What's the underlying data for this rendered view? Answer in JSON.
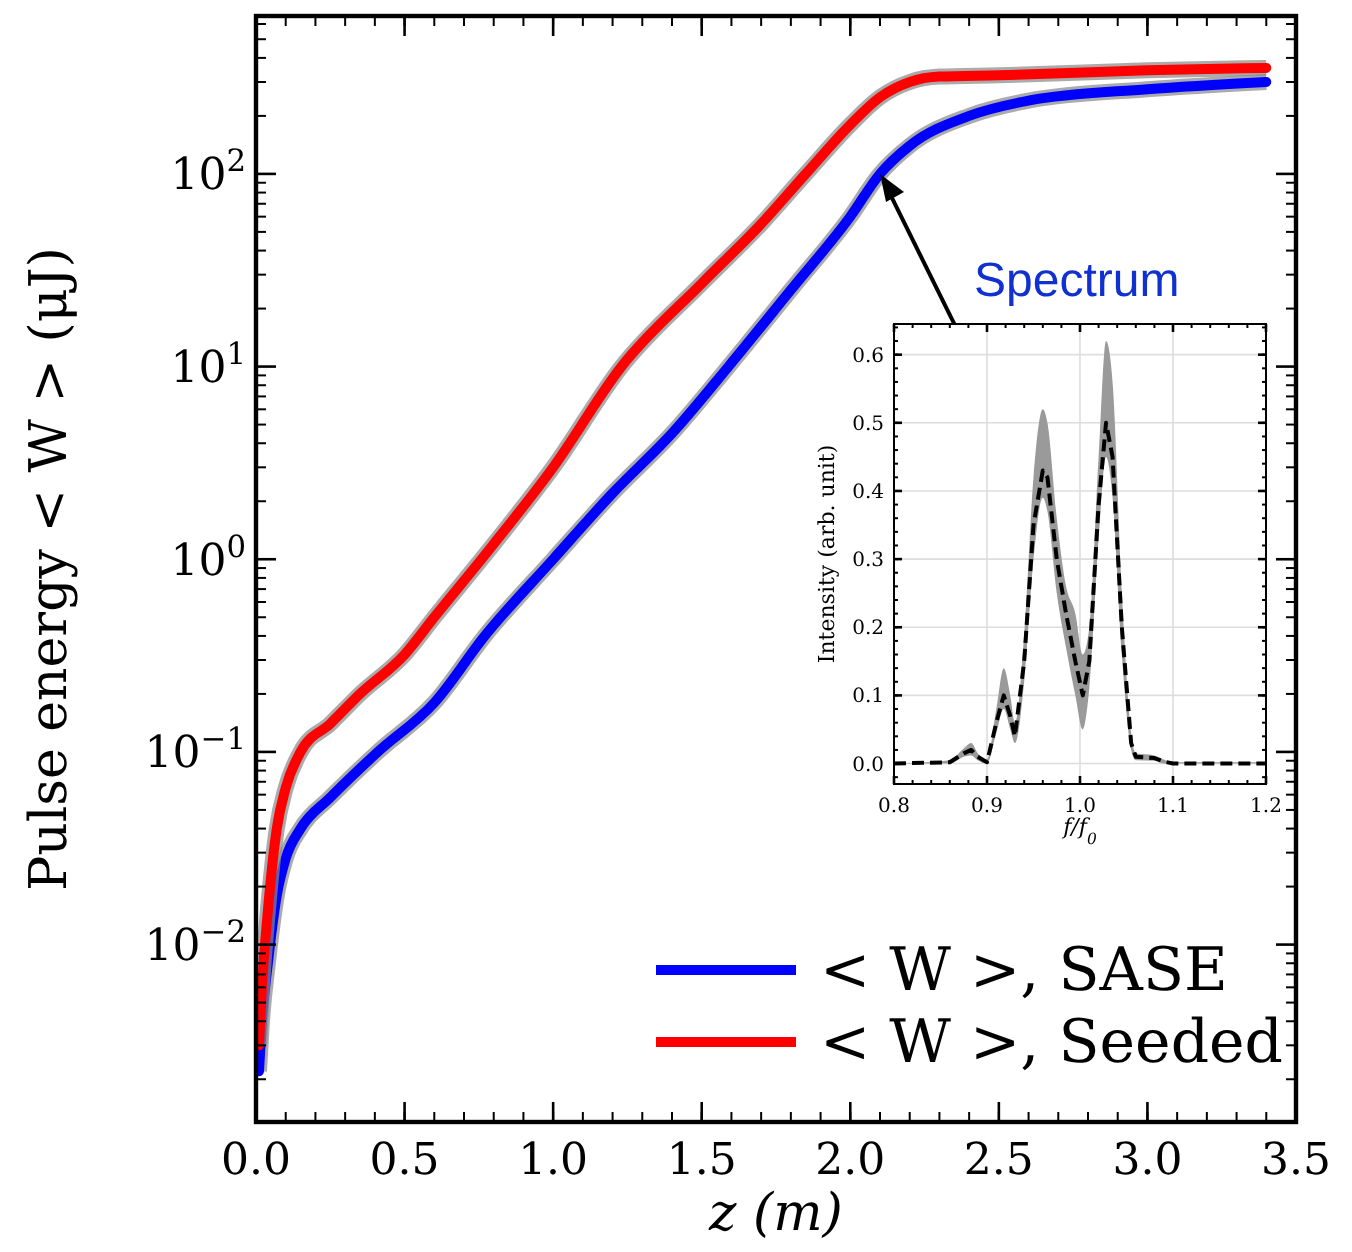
{
  "chart_data": [
    {
      "type": "line",
      "xlabel": "z (m)",
      "ylabel": "Pulse energy  < W >  (μJ)",
      "log": "y",
      "xlim": [
        0,
        3.5
      ],
      "ylim": [
        0.0012,
        660
      ],
      "xticks": [
        {
          "value": 0,
          "label": "0.0"
        },
        {
          "value": 0.5,
          "label": "0.5"
        },
        {
          "value": 1,
          "label": "1.0"
        },
        {
          "value": 1.5,
          "label": "1.5"
        },
        {
          "value": 2,
          "label": "2.0"
        },
        {
          "value": 2.5,
          "label": "2.5"
        },
        {
          "value": 3,
          "label": "3.0"
        },
        {
          "value": 3.5,
          "label": "3.5"
        }
      ],
      "yticks": [
        {
          "value": 0.01,
          "label": "10$^{−2}$"
        },
        {
          "value": 0.1,
          "label": "10$^{−1}$"
        },
        {
          "value": 1,
          "label": "10$^{0}$"
        },
        {
          "value": 10,
          "label": "10$^{1}$"
        },
        {
          "value": 100,
          "label": "10$^{2}$"
        }
      ],
      "grid": false,
      "legend": "bottom right",
      "marker": "none",
      "line_style": "solid",
      "annotations": [
        {
          "text": "Spectrum",
          "x": 2.1,
          "y": 100
        }
      ],
      "series": [
        {
          "name": "< W >, SASE",
          "color": "#0000ff",
          "x": [
            0.01,
            0.02,
            0.04,
            0.07,
            0.1,
            0.15,
            0.25,
            0.41,
            0.6,
            0.77,
            1.0,
            1.2,
            1.4,
            1.59,
            1.8,
            2.0,
            2.1,
            2.2,
            2.4,
            2.6,
            3.0,
            3.4
          ],
          "values": [
            0.0022,
            0.004,
            0.008,
            0.018,
            0.028,
            0.04,
            0.058,
            0.1,
            0.18,
            0.4,
            1.0,
            2.2,
            4.5,
            10,
            25,
            60,
            100,
            140,
            200,
            240,
            275,
            300
          ]
        },
        {
          "name": "< W >, Seeded",
          "color": "#ff0000",
          "x": [
            0.01,
            0.02,
            0.04,
            0.07,
            0.1,
            0.15,
            0.25,
            0.35,
            0.5,
            0.6,
            0.8,
            1.0,
            1.23,
            1.5,
            1.7,
            1.85,
            2.0,
            2.1,
            2.2,
            2.3,
            2.5,
            3.0,
            3.4
          ],
          "values": [
            0.003,
            0.006,
            0.015,
            0.04,
            0.065,
            0.1,
            0.14,
            0.2,
            0.32,
            0.5,
            1.2,
            3,
            10,
            27,
            55,
            100,
            180,
            250,
            300,
            320,
            325,
            345,
            355
          ]
        }
      ]
    },
    {
      "type": "line",
      "xlabel": "f/f$_{0}$",
      "ylabel": "Intensity (arb. unit)",
      "xlim": [
        0.8,
        1.2
      ],
      "ylim": [
        -0.03,
        0.645
      ],
      "xticks": [
        {
          "value": 0.8,
          "label": "0.8"
        },
        {
          "value": 0.9,
          "label": "0.9"
        },
        {
          "value": 1,
          "label": "1.0"
        },
        {
          "value": 1.1,
          "label": "1.1"
        },
        {
          "value": 1.2,
          "label": "1.2"
        }
      ],
      "yticks": [
        {
          "value": 0,
          "label": "0.0"
        },
        0.1,
        0.2,
        0.3,
        0.4,
        0.5,
        0.6
      ],
      "grid": true,
      "marker": "none",
      "line_style": "dashed",
      "series": [
        {
          "color": "#000000",
          "x": [
            0.8,
            0.86,
            0.875,
            0.883,
            0.89,
            0.9,
            0.91,
            0.918,
            0.925,
            0.93,
            0.94,
            0.95,
            0.96,
            0.965,
            0.975,
            0.985,
            0.995,
            1.003,
            1.01,
            1.02,
            1.028,
            1.035,
            1.045,
            1.055,
            1.06,
            1.08,
            1.09,
            1.1,
            1.2
          ],
          "values": [
            0,
            0.002,
            0.015,
            0.02,
            0.01,
            0.002,
            0.06,
            0.1,
            0.07,
            0.04,
            0.15,
            0.35,
            0.43,
            0.42,
            0.3,
            0.22,
            0.15,
            0.1,
            0.15,
            0.38,
            0.5,
            0.45,
            0.2,
            0.03,
            0.01,
            0.008,
            0.003,
            0,
            0
          ],
          "lower": [
            0,
            0,
            0.01,
            0.012,
            0.005,
            0,
            0.045,
            0.08,
            0.05,
            0.03,
            0.12,
            0.3,
            0.39,
            0.37,
            0.25,
            0.17,
            0.1,
            0.05,
            0.11,
            0.33,
            0.45,
            0.39,
            0.16,
            0.02,
            0.005,
            0.004,
            0,
            0,
            0
          ],
          "upper": [
            0,
            0.005,
            0.022,
            0.03,
            0.015,
            0.006,
            0.08,
            0.14,
            0.1,
            0.06,
            0.19,
            0.42,
            0.52,
            0.5,
            0.36,
            0.26,
            0.22,
            0.16,
            0.2,
            0.45,
            0.62,
            0.56,
            0.25,
            0.045,
            0.015,
            0.012,
            0.006,
            0.002,
            0.002
          ]
        }
      ]
    }
  ]
}
